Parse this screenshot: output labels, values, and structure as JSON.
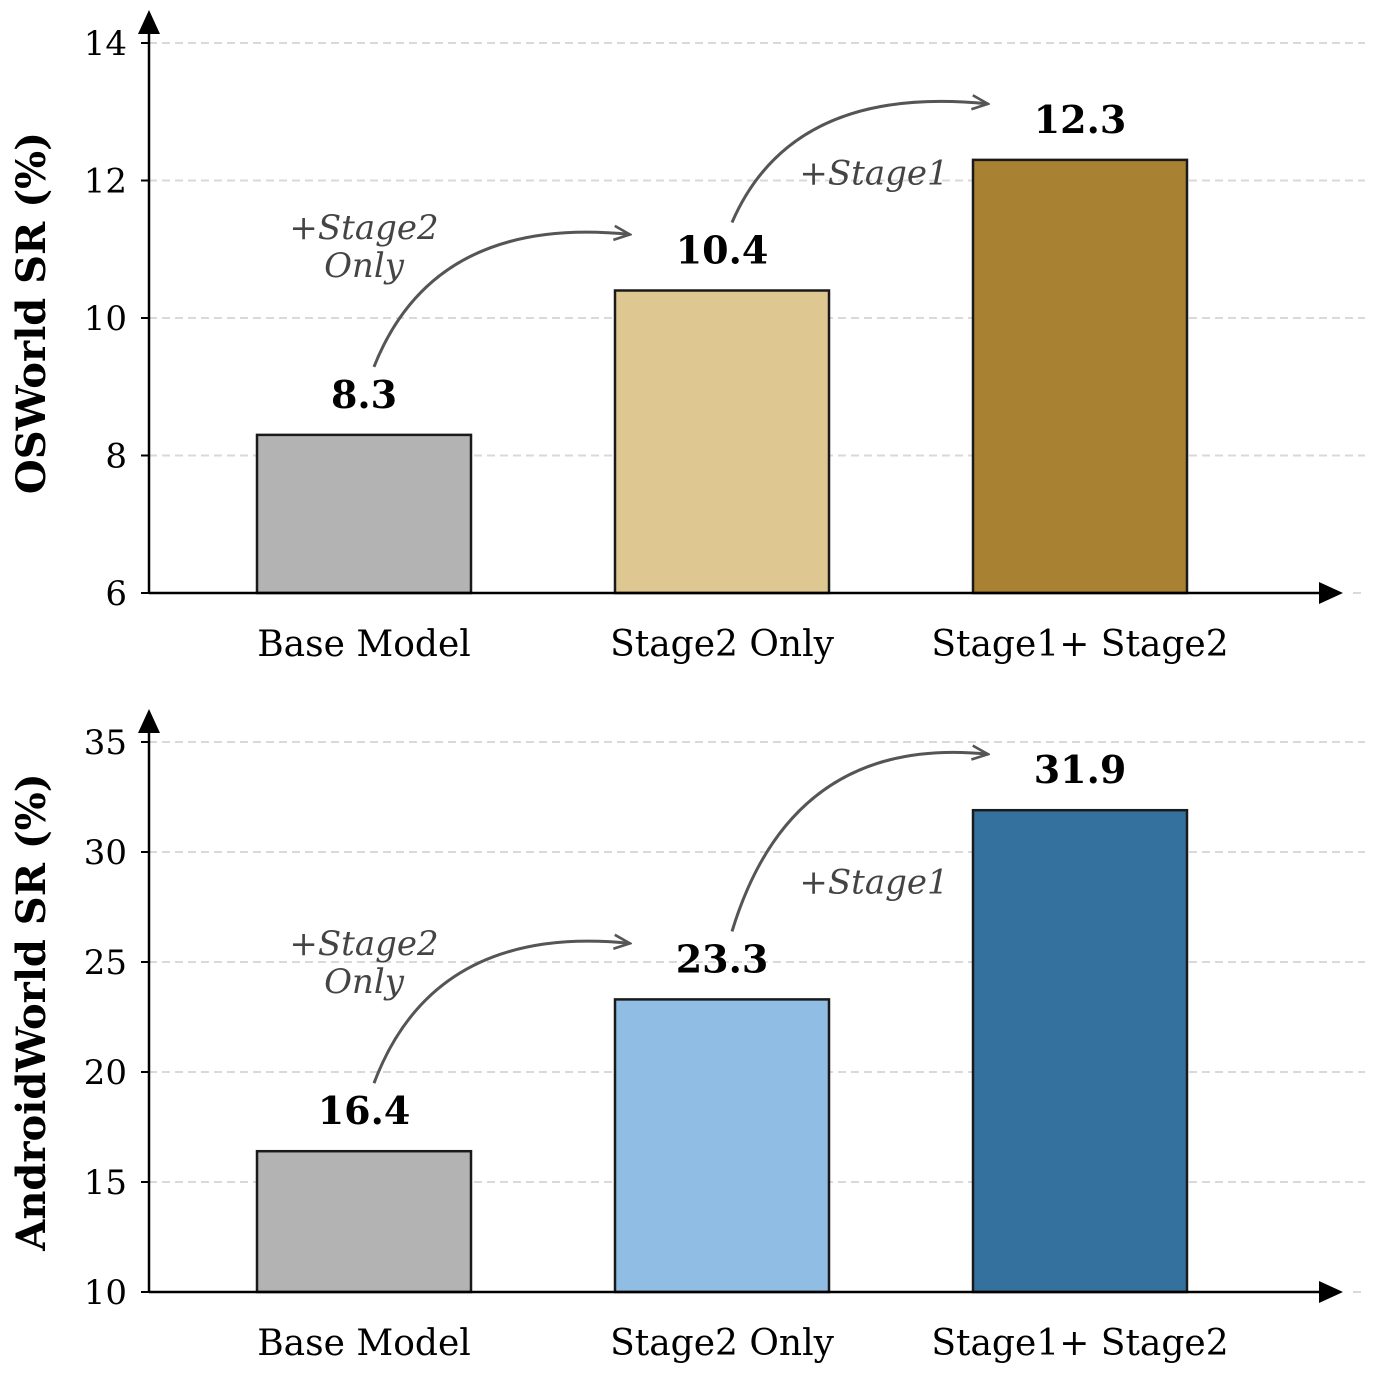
{
  "chart_data": [
    {
      "type": "bar",
      "categories": [
        "Base Model",
        "Stage2 Only",
        "Stage1+ Stage2"
      ],
      "values": [
        8.3,
        10.4,
        12.3
      ],
      "ylabel": "OSWorld SR (%)",
      "ylim": [
        6,
        14
      ],
      "yticks": [
        6,
        8,
        10,
        12,
        14
      ],
      "value_labels": [
        "8.3",
        "10.4",
        "12.3"
      ],
      "bar_colors": [
        "#b3b3b3",
        "#dfc792",
        "#a98133"
      ],
      "grid": true,
      "annotations": [
        {
          "text_lines": [
            "+Stage2",
            "Only"
          ],
          "from": 0,
          "to": 1
        },
        {
          "text_lines": [
            "+Stage1"
          ],
          "from": 1,
          "to": 2
        }
      ]
    },
    {
      "type": "bar",
      "categories": [
        "Base Model",
        "Stage2 Only",
        "Stage1+ Stage2"
      ],
      "values": [
        16.4,
        23.3,
        31.9
      ],
      "ylabel": "AndroidWorld SR (%)",
      "ylim": [
        10,
        35
      ],
      "yticks": [
        10,
        15,
        20,
        25,
        30,
        35
      ],
      "value_labels": [
        "16.4",
        "23.3",
        "31.9"
      ],
      "bar_colors": [
        "#b3b3b3",
        "#90bde3",
        "#34719f"
      ],
      "grid": true,
      "annotations": [
        {
          "text_lines": [
            "+Stage2",
            "Only"
          ],
          "from": 0,
          "to": 1
        },
        {
          "text_lines": [
            "+Stage1"
          ],
          "from": 1,
          "to": 2
        }
      ]
    }
  ]
}
